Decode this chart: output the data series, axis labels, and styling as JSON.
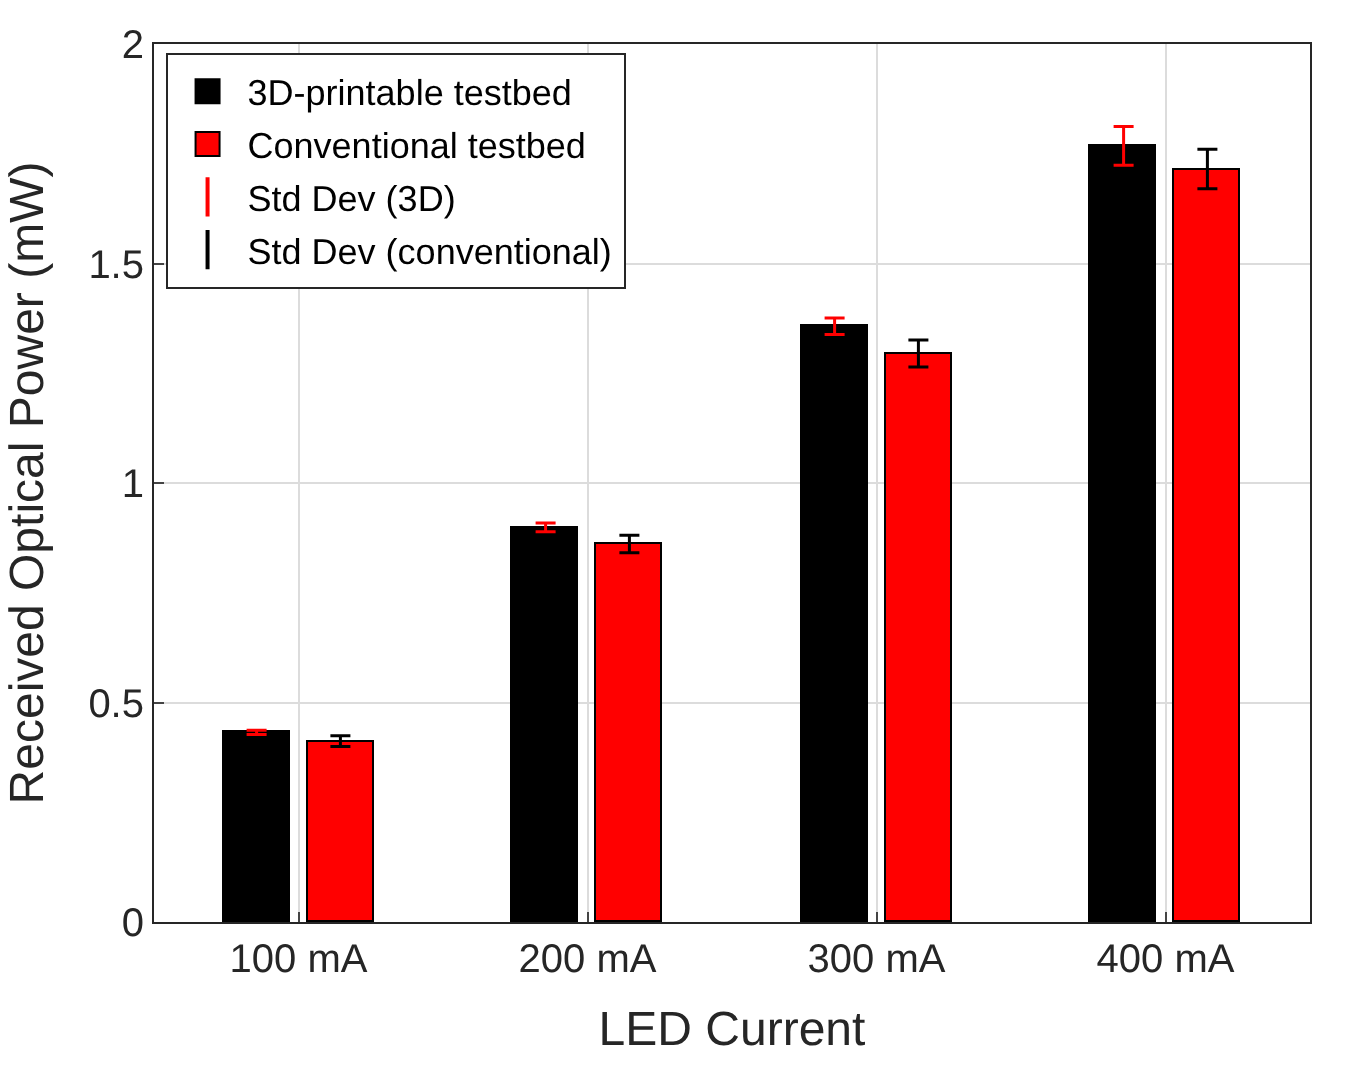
{
  "chart_data": {
    "type": "bar",
    "xlabel": "LED Current",
    "ylabel": "Received Optical Power (mW)",
    "categories": [
      "100 mA",
      "200 mA",
      "300 mA",
      "400 mA"
    ],
    "series": [
      {
        "name": "3D-printable testbed",
        "color": "#000000",
        "values": [
          0.432,
          0.899,
          1.357,
          1.768
        ],
        "errors": [
          0.005,
          0.01,
          0.019,
          0.044
        ]
      },
      {
        "name": "Conventional testbed",
        "color": "#ff0000",
        "values": [
          0.412,
          0.861,
          1.295,
          1.715
        ],
        "errors": [
          0.012,
          0.02,
          0.031,
          0.045
        ]
      },
      {
        "name": "Std Dev (3D)",
        "type": "scatter",
        "color": "#ff0000",
        "values": [
          null,
          null,
          null,
          null
        ]
      },
      {
        "name": "Std Dev (conventional)",
        "type": "scatter",
        "color": "#000000",
        "values": [
          null,
          null,
          null,
          null
        ]
      }
    ],
    "ylim": [
      0,
      2
    ],
    "yticks": [
      0,
      0.5,
      1,
      1.5,
      2
    ],
    "grid": true,
    "legend": "top left"
  }
}
